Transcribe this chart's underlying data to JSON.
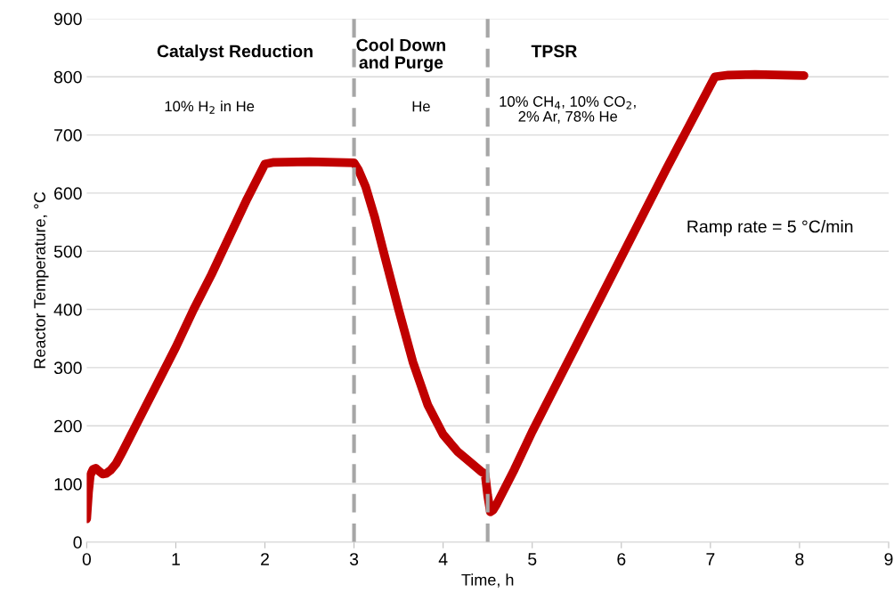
{
  "chart_data": {
    "type": "line",
    "xlabel": "Time, h",
    "ylabel": "Reactor Temperature, °C",
    "xlim": [
      0,
      9
    ],
    "xticks": [
      0,
      1,
      2,
      3,
      4,
      5,
      6,
      7,
      8,
      9
    ],
    "ylim": [
      0,
      900
    ],
    "yticks": [
      0,
      100,
      200,
      300,
      400,
      500,
      600,
      700,
      800,
      900
    ],
    "grid": "y",
    "marker": "none",
    "line_style": "solid",
    "series": [
      {
        "color": "#c00000",
        "x": [
          0.0,
          0.02,
          0.04,
          0.07,
          0.1,
          0.14,
          0.18,
          0.22,
          0.27,
          0.33,
          0.4,
          0.6,
          0.8,
          1.0,
          1.2,
          1.4,
          1.6,
          1.8,
          2.0,
          2.1,
          2.5,
          3.0,
          3.05,
          3.13,
          3.23,
          3.33,
          3.5,
          3.66,
          3.83,
          4.0,
          4.16,
          4.3,
          4.43,
          4.47,
          4.5,
          4.53,
          4.56,
          4.6,
          4.8,
          5.0,
          5.23,
          5.5,
          6.0,
          6.5,
          7.05,
          7.2,
          7.5,
          8.05
        ],
        "values": [
          40,
          85,
          115,
          125,
          127,
          122,
          117,
          118,
          124,
          135,
          155,
          215,
          275,
          335,
          400,
          460,
          525,
          590,
          650,
          653,
          654,
          652,
          640,
          611,
          560,
          500,
          400,
          310,
          235,
          185,
          156,
          138,
          121,
          118,
          80,
          52,
          55,
          65,
          125,
          190,
          259,
          340,
          490,
          640,
          800,
          803,
          804,
          802
        ]
      }
    ],
    "ref_lines": [
      {
        "axis": "x",
        "value": 3,
        "color": "#a6a6a6",
        "line_style": "dashed"
      },
      {
        "axis": "x",
        "value": 4.5,
        "color": "#a6a6a6",
        "line_style": "dashed"
      }
    ],
    "annotations": [
      "Catalyst Reduction",
      "Cool Down\nand Purge",
      "TPSR",
      "10% H$_{2}$ in He",
      "He",
      "10% CH$_{4}$, 10% CO$_{2}$,\n2% Ar, 78% He",
      "Ramp rate = 5 °C/min"
    ]
  }
}
